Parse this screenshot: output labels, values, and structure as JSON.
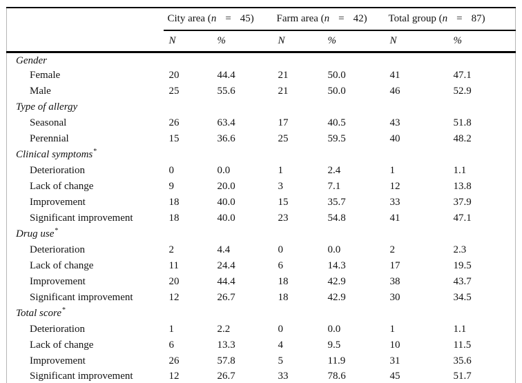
{
  "table": {
    "groups": [
      {
        "name": "City area",
        "n_label": "n",
        "equals": "=",
        "count": "45"
      },
      {
        "name": "Farm area",
        "n_label": "n",
        "equals": "=",
        "count": "42"
      },
      {
        "name": "Total group",
        "n_label": "n",
        "equals": "=",
        "count": "87"
      }
    ],
    "subheaders": [
      "N",
      "%"
    ],
    "rows": [
      {
        "type": "section",
        "label": "Gender",
        "sup": ""
      },
      {
        "type": "item",
        "label": "Female",
        "values": [
          "20",
          "44.4",
          "21",
          "50.0",
          "41",
          "47.1"
        ]
      },
      {
        "type": "item",
        "label": "Male",
        "values": [
          "25",
          "55.6",
          "21",
          "50.0",
          "46",
          "52.9"
        ]
      },
      {
        "type": "section",
        "label": "Type of allergy",
        "sup": ""
      },
      {
        "type": "item",
        "label": "Seasonal",
        "values": [
          "26",
          "63.4",
          "17",
          "40.5",
          "43",
          "51.8"
        ]
      },
      {
        "type": "item",
        "label": "Perennial",
        "values": [
          "15",
          "36.6",
          "25",
          "59.5",
          "40",
          "48.2"
        ]
      },
      {
        "type": "section",
        "label": "Clinical symptoms",
        "sup": "*"
      },
      {
        "type": "item",
        "label": "Deterioration",
        "values": [
          "0",
          "0.0",
          "1",
          "2.4",
          "1",
          "1.1"
        ]
      },
      {
        "type": "item",
        "label": "Lack of change",
        "values": [
          "9",
          "20.0",
          "3",
          "7.1",
          "12",
          "13.8"
        ]
      },
      {
        "type": "item",
        "label": "Improvement",
        "values": [
          "18",
          "40.0",
          "15",
          "35.7",
          "33",
          "37.9"
        ]
      },
      {
        "type": "item",
        "label": "Significant improvement",
        "values": [
          "18",
          "40.0",
          "23",
          "54.8",
          "41",
          "47.1"
        ]
      },
      {
        "type": "section",
        "label": "Drug use",
        "sup": "*"
      },
      {
        "type": "item",
        "label": "Deterioration",
        "values": [
          "2",
          "4.4",
          "0",
          "0.0",
          "2",
          "2.3"
        ]
      },
      {
        "type": "item",
        "label": "Lack of change",
        "values": [
          "11",
          "24.4",
          "6",
          "14.3",
          "17",
          "19.5"
        ]
      },
      {
        "type": "item",
        "label": "Improvement",
        "values": [
          "20",
          "44.4",
          "18",
          "42.9",
          "38",
          "43.7"
        ]
      },
      {
        "type": "item",
        "label": "Significant improvement",
        "values": [
          "12",
          "26.7",
          "18",
          "42.9",
          "30",
          "34.5"
        ]
      },
      {
        "type": "section",
        "label": "Total score",
        "sup": "*"
      },
      {
        "type": "item",
        "label": "Deterioration",
        "values": [
          "1",
          "2.2",
          "0",
          "0.0",
          "1",
          "1.1"
        ]
      },
      {
        "type": "item",
        "label": "Lack of change",
        "values": [
          "6",
          "13.3",
          "4",
          "9.5",
          "10",
          "11.5"
        ]
      },
      {
        "type": "item",
        "label": "Improvement",
        "values": [
          "26",
          "57.8",
          "5",
          "11.9",
          "31",
          "35.6"
        ]
      },
      {
        "type": "item",
        "label": "Significant improvement",
        "values": [
          "12",
          "26.7",
          "33",
          "78.6",
          "45",
          "51.7"
        ]
      }
    ],
    "colors": {
      "rule": "#000000",
      "side_border": "#b5b5b5",
      "text": "#111111",
      "background": "#ffffff"
    }
  }
}
